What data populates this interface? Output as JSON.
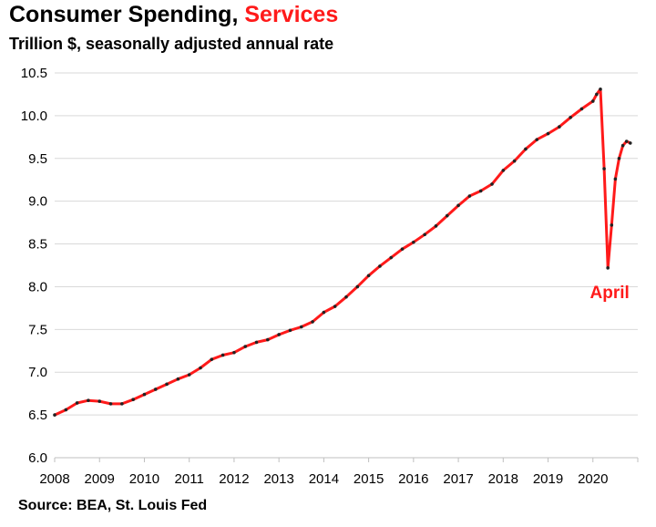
{
  "chart_data": {
    "type": "line",
    "title": "Consumer Spending,",
    "title_highlight": "Services",
    "subtitle": "Trillion $, seasonally adjusted annual rate",
    "source": "Source: BEA, St. Louis Fed",
    "xlabel": "",
    "ylabel": "",
    "ylim": [
      6.0,
      10.5
    ],
    "xlim": [
      2008.0,
      2021.0
    ],
    "grid": true,
    "y_ticks": [
      "6.0",
      "6.5",
      "7.0",
      "7.5",
      "8.0",
      "8.5",
      "9.0",
      "9.5",
      "10.0",
      "10.5"
    ],
    "x_ticks": [
      "2008",
      "2009",
      "2010",
      "2011",
      "2012",
      "2013",
      "2014",
      "2015",
      "2016",
      "2017",
      "2018",
      "2019",
      "2020"
    ],
    "series": [
      {
        "name": "Services",
        "color": "#ff1a1a",
        "marker_color": "#222222",
        "x": [
          2008.0,
          2008.25,
          2008.5,
          2008.75,
          2009.0,
          2009.25,
          2009.5,
          2009.75,
          2010.0,
          2010.25,
          2010.5,
          2010.75,
          2011.0,
          2011.25,
          2011.5,
          2011.75,
          2012.0,
          2012.25,
          2012.5,
          2012.75,
          2013.0,
          2013.25,
          2013.5,
          2013.75,
          2014.0,
          2014.25,
          2014.5,
          2014.75,
          2015.0,
          2015.25,
          2015.5,
          2015.75,
          2016.0,
          2016.25,
          2016.5,
          2016.75,
          2017.0,
          2017.25,
          2017.5,
          2017.75,
          2018.0,
          2018.25,
          2018.5,
          2018.75,
          2019.0,
          2019.25,
          2019.5,
          2019.75,
          2020.0,
          2020.083,
          2020.167,
          2020.25,
          2020.333,
          2020.417,
          2020.5,
          2020.583,
          2020.667,
          2020.75,
          2020.833
        ],
        "values": [
          6.5,
          6.56,
          6.64,
          6.67,
          6.66,
          6.63,
          6.63,
          6.68,
          6.74,
          6.8,
          6.86,
          6.92,
          6.97,
          7.05,
          7.15,
          7.2,
          7.23,
          7.3,
          7.35,
          7.38,
          7.44,
          7.49,
          7.53,
          7.59,
          7.7,
          7.77,
          7.88,
          8.0,
          8.13,
          8.24,
          8.34,
          8.44,
          8.52,
          8.61,
          8.71,
          8.83,
          8.95,
          9.06,
          9.12,
          9.2,
          9.36,
          9.47,
          9.61,
          9.72,
          9.79,
          9.87,
          9.98,
          10.08,
          10.17,
          10.25,
          10.31,
          9.38,
          8.22,
          8.72,
          9.26,
          9.5,
          9.65,
          9.7,
          9.68
        ]
      }
    ],
    "annotations": [
      {
        "text": "April",
        "x": 2020.333,
        "y": 8.22
      }
    ]
  }
}
